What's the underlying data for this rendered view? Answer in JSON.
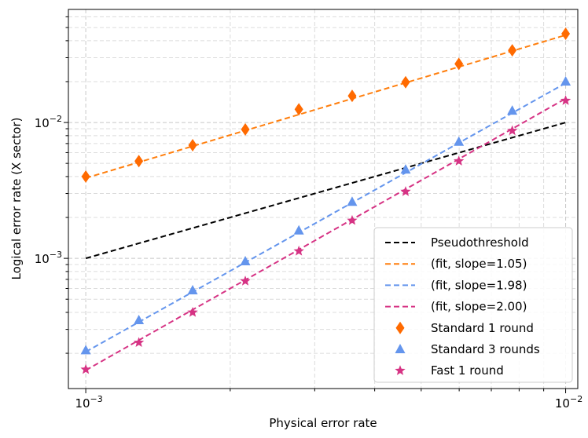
{
  "chart_data": {
    "type": "line",
    "scale": {
      "x": "log",
      "y": "log"
    },
    "xlabel": "Physical error rate",
    "ylabel": "Logical error rate (X sector)",
    "xlim": [
      0.00092,
      0.0106
    ],
    "ylim": [
      0.00011,
      0.068
    ],
    "x_ticks": [
      {
        "value": 0.001,
        "base": "10",
        "exp": "−3"
      },
      {
        "value": 0.01,
        "base": "10",
        "exp": "−2"
      }
    ],
    "y_ticks": [
      {
        "value": 0.001,
        "base": "10",
        "exp": "−3"
      },
      {
        "value": 0.01,
        "base": "10",
        "exp": "−2"
      }
    ],
    "grid": true,
    "legend_position": "bottom-right",
    "x": [
      0.001,
      0.00129,
      0.00167,
      0.00215,
      0.00278,
      0.00359,
      0.00464,
      0.00599,
      0.00774,
      0.01
    ],
    "series": [
      {
        "name": "Pseudothreshold",
        "kind": "line",
        "color": "#000000",
        "x": [
          0.001,
          0.01
        ],
        "values": [
          0.001,
          0.01
        ]
      },
      {
        "name": "(fit, slope=1.05)",
        "kind": "line",
        "color": "#ff7f0e",
        "x": [
          0.001,
          0.01
        ],
        "values": [
          0.0039,
          0.044
        ]
      },
      {
        "name": "(fit, slope=1.98)",
        "kind": "line",
        "color": "#6495ed",
        "x": [
          0.001,
          0.01
        ],
        "values": [
          0.000205,
          0.0195
        ]
      },
      {
        "name": "(fit, slope=2.00)",
        "kind": "line",
        "color": "#d63384",
        "x": [
          0.001,
          0.01
        ],
        "values": [
          0.00015,
          0.015
        ]
      },
      {
        "name": "Standard 1 round",
        "kind": "markers",
        "marker": "diamond",
        "color": "#ff6a00",
        "values": [
          0.004,
          0.0052,
          0.0068,
          0.0089,
          0.0125,
          0.0157,
          0.0198,
          0.027,
          0.034,
          0.045
        ]
      },
      {
        "name": "Standard 3 rounds",
        "kind": "markers",
        "marker": "triangle",
        "color": "#6495ed",
        "values": [
          0.00021,
          0.00035,
          0.00058,
          0.00095,
          0.0016,
          0.0026,
          0.0045,
          0.0072,
          0.0122,
          0.02
        ]
      },
      {
        "name": "Fast 1 round",
        "kind": "markers",
        "marker": "star",
        "color": "#d63384",
        "values": [
          0.000152,
          0.00024,
          0.0004,
          0.00068,
          0.00113,
          0.0019,
          0.0031,
          0.0052,
          0.0087,
          0.0145
        ]
      }
    ]
  }
}
